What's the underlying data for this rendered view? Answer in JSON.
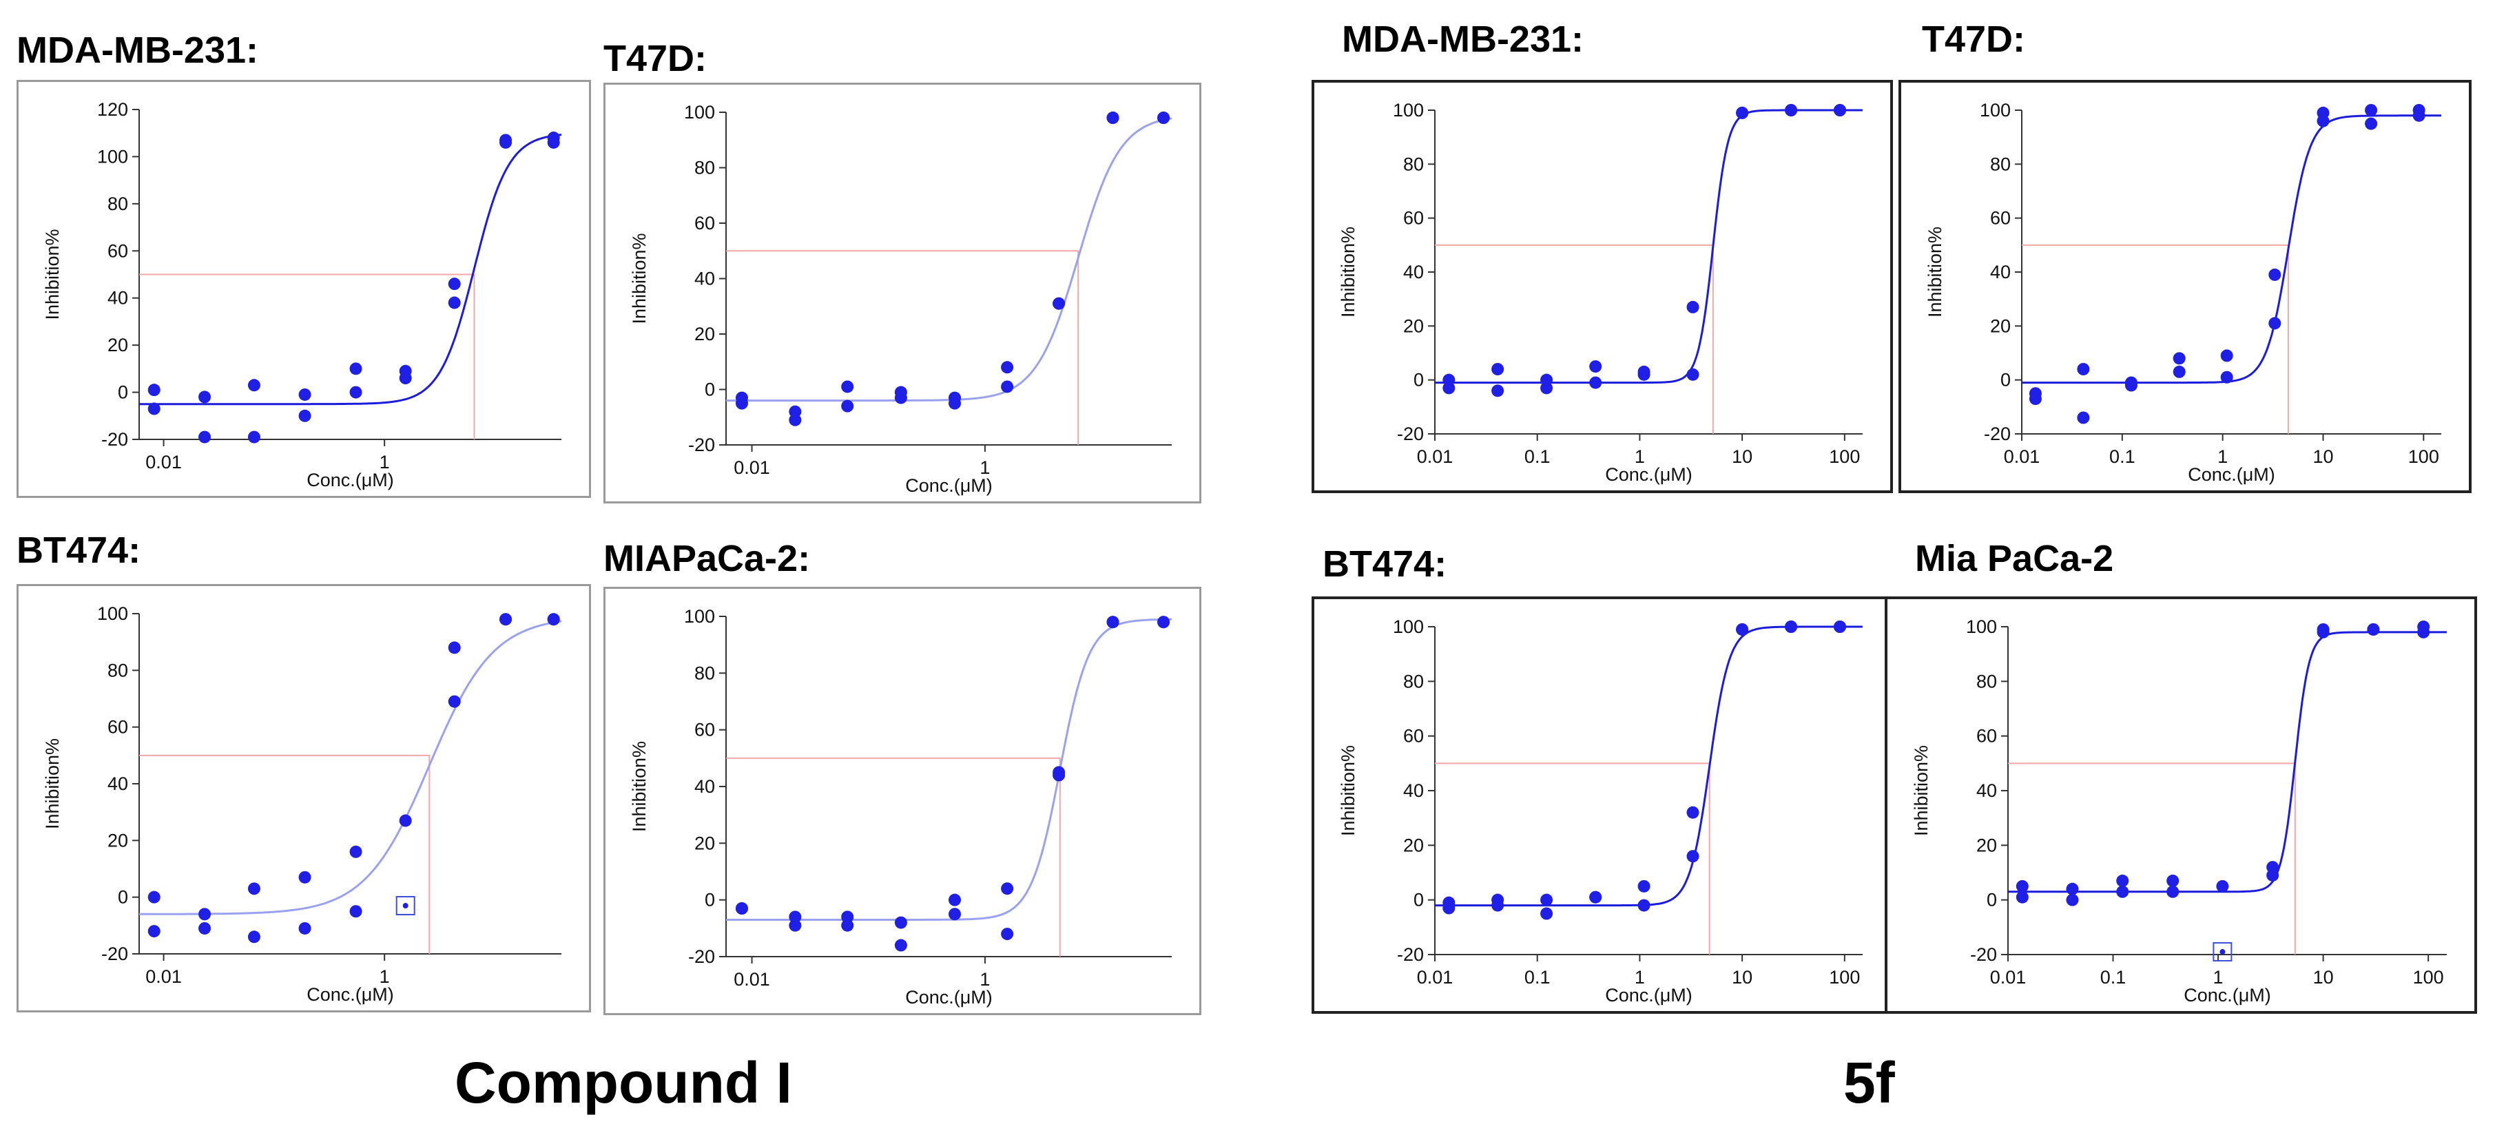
{
  "groups": [
    {
      "label": "Compound I"
    },
    {
      "label": "5f"
    }
  ],
  "colors": {
    "points": "#1f1fe6",
    "curve_dark": "#1c1cdc",
    "curve_light": "#9aa2f0",
    "ic50_line": "#f2a7a7"
  },
  "chart_data": [
    {
      "id": "p1",
      "group": "Compound I",
      "title": "MDA-MB-231:",
      "type": "scatter",
      "xlabel": "Conc.(μM)",
      "ylabel": "Inhibition%",
      "xscale": "log",
      "xlim": [
        0.006,
        40
      ],
      "ylim": [
        -20,
        120
      ],
      "xticks": [
        0.01,
        1
      ],
      "xtick_labels": [
        "0.01",
        "1"
      ],
      "yticks": [
        -20,
        0,
        20,
        40,
        60,
        80,
        100,
        120
      ],
      "fit": {
        "bottom": -5,
        "top": 110,
        "ic50": 6.5,
        "hill": 2.8
      },
      "ic50_line": 50,
      "points": [
        [
          0.0082,
          1
        ],
        [
          0.0082,
          -7
        ],
        [
          0.0235,
          -2
        ],
        [
          0.0235,
          -19
        ],
        [
          0.066,
          3
        ],
        [
          0.066,
          -19
        ],
        [
          0.19,
          -1
        ],
        [
          0.19,
          -10
        ],
        [
          0.55,
          10
        ],
        [
          0.55,
          0
        ],
        [
          1.55,
          9
        ],
        [
          1.55,
          6
        ],
        [
          4.3,
          46
        ],
        [
          4.3,
          38
        ],
        [
          12.5,
          107
        ],
        [
          12.5,
          106
        ],
        [
          34,
          108
        ],
        [
          34,
          106
        ]
      ],
      "outliers": []
    },
    {
      "id": "p2",
      "group": "Compound I",
      "title": "T47D:",
      "type": "scatter",
      "xlabel": "Conc.(μM)",
      "ylabel": "Inhibition%",
      "xscale": "log",
      "xlim": [
        0.006,
        40
      ],
      "ylim": [
        -20,
        100
      ],
      "xticks": [
        0.01,
        1
      ],
      "xtick_labels": [
        "0.01",
        "1"
      ],
      "yticks": [
        -20,
        0,
        20,
        40,
        60,
        80,
        100
      ],
      "fit": {
        "bottom": -4,
        "top": 99,
        "ic50": 6.3,
        "hill": 2.4
      },
      "ic50_line": 50,
      "points": [
        [
          0.0082,
          -3
        ],
        [
          0.0082,
          -5
        ],
        [
          0.0235,
          -8
        ],
        [
          0.0235,
          -11
        ],
        [
          0.066,
          1
        ],
        [
          0.066,
          -6
        ],
        [
          0.19,
          -1
        ],
        [
          0.19,
          -3
        ],
        [
          0.55,
          -3
        ],
        [
          0.55,
          -5
        ],
        [
          1.55,
          8
        ],
        [
          1.55,
          1
        ],
        [
          4.3,
          31
        ],
        [
          4.3,
          31
        ],
        [
          12.5,
          98
        ],
        [
          12.5,
          98
        ],
        [
          34,
          98
        ],
        [
          34,
          98
        ]
      ],
      "outliers": []
    },
    {
      "id": "p3",
      "group": "Compound I",
      "title": "BT474:",
      "type": "scatter",
      "xlabel": "Conc.(μM)",
      "ylabel": "Inhibition%",
      "xscale": "log",
      "xlim": [
        0.006,
        40
      ],
      "ylim": [
        -20,
        100
      ],
      "xticks": [
        0.01,
        1
      ],
      "xtick_labels": [
        "0.01",
        "1"
      ],
      "yticks": [
        -20,
        0,
        20,
        40,
        60,
        80,
        100
      ],
      "fit": {
        "bottom": -6,
        "top": 99,
        "ic50": 2.55,
        "hill": 1.5
      },
      "ic50_line": 50,
      "points": [
        [
          0.0082,
          0
        ],
        [
          0.0082,
          -12
        ],
        [
          0.0235,
          -6
        ],
        [
          0.0235,
          -11
        ],
        [
          0.066,
          3
        ],
        [
          0.066,
          -14
        ],
        [
          0.19,
          7
        ],
        [
          0.19,
          -11
        ],
        [
          0.55,
          16
        ],
        [
          0.55,
          -5
        ],
        [
          1.55,
          27
        ],
        [
          4.3,
          88
        ],
        [
          4.3,
          69
        ],
        [
          12.5,
          98
        ],
        [
          12.5,
          98
        ],
        [
          34,
          98
        ],
        [
          34,
          98
        ]
      ],
      "outliers": [
        [
          1.55,
          -3
        ]
      ]
    },
    {
      "id": "p4",
      "group": "Compound I",
      "title": "MIAPaCa-2:",
      "type": "scatter",
      "xlabel": "Conc.(μM)",
      "ylabel": "Inhibition%",
      "xscale": "log",
      "xlim": [
        0.006,
        40
      ],
      "ylim": [
        -20,
        100
      ],
      "xticks": [
        0.01,
        1
      ],
      "xtick_labels": [
        "0.01",
        "1"
      ],
      "yticks": [
        -20,
        0,
        20,
        40,
        60,
        80,
        100
      ],
      "fit": {
        "bottom": -7,
        "top": 99,
        "ic50": 4.4,
        "hill": 3.5
      },
      "ic50_line": 50,
      "points": [
        [
          0.0082,
          -3
        ],
        [
          0.0082,
          -3
        ],
        [
          0.0235,
          -6
        ],
        [
          0.0235,
          -9
        ],
        [
          0.066,
          -6
        ],
        [
          0.066,
          -9
        ],
        [
          0.19,
          -8
        ],
        [
          0.19,
          -16
        ],
        [
          0.55,
          0
        ],
        [
          0.55,
          -5
        ],
        [
          1.55,
          4
        ],
        [
          1.55,
          -12
        ],
        [
          4.3,
          45
        ],
        [
          4.3,
          44
        ],
        [
          12.5,
          98
        ],
        [
          12.5,
          98
        ],
        [
          34,
          98
        ],
        [
          34,
          98
        ]
      ],
      "outliers": []
    },
    {
      "id": "p5",
      "group": "5f",
      "title": "MDA-MB-231:",
      "type": "scatter",
      "xlabel": "Conc.(μM)",
      "ylabel": "Inhibition%",
      "xscale": "log",
      "xlim": [
        0.01,
        150
      ],
      "ylim": [
        -20,
        100
      ],
      "xticks": [
        0.01,
        0.1,
        1,
        10,
        100
      ],
      "xtick_labels": [
        "0.01",
        "0.1",
        "1",
        "10",
        "100"
      ],
      "yticks": [
        -20,
        0,
        20,
        40,
        60,
        80,
        100
      ],
      "fit": {
        "bottom": -1,
        "top": 100,
        "ic50": 5.2,
        "hill": 6
      },
      "ic50_line": 50,
      "points": [
        [
          0.0137,
          0
        ],
        [
          0.0137,
          -3
        ],
        [
          0.041,
          4
        ],
        [
          0.041,
          -4
        ],
        [
          0.123,
          0
        ],
        [
          0.123,
          -3
        ],
        [
          0.37,
          5
        ],
        [
          0.37,
          -1
        ],
        [
          1.1,
          3
        ],
        [
          1.1,
          2
        ],
        [
          3.3,
          27
        ],
        [
          3.3,
          2
        ],
        [
          10,
          99
        ],
        [
          10,
          99
        ],
        [
          30,
          100
        ],
        [
          30,
          100
        ],
        [
          90,
          100
        ],
        [
          90,
          100
        ]
      ],
      "outliers": []
    },
    {
      "id": "p6",
      "group": "5f",
      "title": "T47D:",
      "type": "scatter",
      "xlabel": "Conc.(μM)",
      "ylabel": "Inhibition%",
      "xscale": "log",
      "xlim": [
        0.01,
        150
      ],
      "ylim": [
        -20,
        100
      ],
      "xticks": [
        0.01,
        0.1,
        1,
        10,
        100
      ],
      "xtick_labels": [
        "0.01",
        "0.1",
        "1",
        "10",
        "100"
      ],
      "yticks": [
        -20,
        0,
        20,
        40,
        60,
        80,
        100
      ],
      "fit": {
        "bottom": -1,
        "top": 98,
        "ic50": 4.5,
        "hill": 4
      },
      "ic50_line": 50,
      "points": [
        [
          0.0137,
          -5
        ],
        [
          0.0137,
          -7
        ],
        [
          0.041,
          4
        ],
        [
          0.041,
          -14
        ],
        [
          0.123,
          -1
        ],
        [
          0.123,
          -2
        ],
        [
          0.37,
          8
        ],
        [
          0.37,
          3
        ],
        [
          1.1,
          9
        ],
        [
          1.1,
          1
        ],
        [
          3.3,
          39
        ],
        [
          3.3,
          21
        ],
        [
          10,
          99
        ],
        [
          10,
          96
        ],
        [
          30,
          100
        ],
        [
          30,
          95
        ],
        [
          90,
          100
        ],
        [
          90,
          98
        ]
      ],
      "outliers": []
    },
    {
      "id": "p7",
      "group": "5f",
      "title": "BT474:",
      "type": "scatter",
      "xlabel": "Conc.(μM)",
      "ylabel": "Inhibition%",
      "xscale": "log",
      "xlim": [
        0.01,
        150
      ],
      "ylim": [
        -20,
        100
      ],
      "xticks": [
        0.01,
        0.1,
        1,
        10,
        100
      ],
      "xtick_labels": [
        "0.01",
        "0.1",
        "1",
        "10",
        "100"
      ],
      "yticks": [
        -20,
        0,
        20,
        40,
        60,
        80,
        100
      ],
      "fit": {
        "bottom": -2,
        "top": 100,
        "ic50": 4.8,
        "hill": 4.5
      },
      "ic50_line": 50,
      "points": [
        [
          0.0137,
          -1
        ],
        [
          0.0137,
          -3
        ],
        [
          0.041,
          0
        ],
        [
          0.041,
          -2
        ],
        [
          0.123,
          0
        ],
        [
          0.123,
          -5
        ],
        [
          0.37,
          1
        ],
        [
          0.37,
          1
        ],
        [
          1.1,
          5
        ],
        [
          1.1,
          -2
        ],
        [
          3.3,
          32
        ],
        [
          3.3,
          16
        ],
        [
          10,
          99
        ],
        [
          10,
          99
        ],
        [
          30,
          100
        ],
        [
          30,
          100
        ],
        [
          90,
          100
        ],
        [
          90,
          100
        ]
      ],
      "outliers": []
    },
    {
      "id": "p8",
      "group": "5f",
      "title": "Mia PaCa-2",
      "type": "scatter",
      "xlabel": "Conc.(μM)",
      "ylabel": "Inhibition%",
      "xscale": "log",
      "xlim": [
        0.01,
        150
      ],
      "ylim": [
        -20,
        100
      ],
      "xticks": [
        0.01,
        0.1,
        1,
        10,
        100
      ],
      "xtick_labels": [
        "0.01",
        "0.1",
        "1",
        "10",
        "100"
      ],
      "yticks": [
        -20,
        0,
        20,
        40,
        60,
        80,
        100
      ],
      "fit": {
        "bottom": 3,
        "top": 98,
        "ic50": 5.4,
        "hill": 6.5
      },
      "ic50_line": 50,
      "points": [
        [
          0.0137,
          5
        ],
        [
          0.0137,
          1
        ],
        [
          0.041,
          4
        ],
        [
          0.041,
          0
        ],
        [
          0.123,
          7
        ],
        [
          0.123,
          3
        ],
        [
          0.37,
          7
        ],
        [
          0.37,
          3
        ],
        [
          1.1,
          5
        ],
        [
          3.3,
          12
        ],
        [
          3.3,
          9
        ],
        [
          10,
          99
        ],
        [
          10,
          98
        ],
        [
          30,
          99
        ],
        [
          30,
          99
        ],
        [
          90,
          100
        ],
        [
          90,
          98
        ]
      ],
      "outliers": [
        [
          1.1,
          -19
        ]
      ]
    }
  ]
}
